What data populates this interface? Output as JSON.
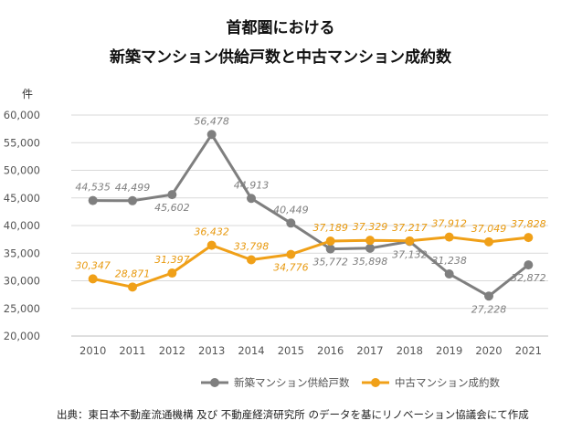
{
  "chart_data": {
    "type": "line",
    "title_line1": "首都圏における",
    "title_line2": "新築マンション供給戸数と中古マンション成約数",
    "ylabel": "件",
    "xlabel": "",
    "ylim": [
      20000,
      60000
    ],
    "yticks": [
      20000,
      25000,
      30000,
      35000,
      40000,
      45000,
      50000,
      55000,
      60000
    ],
    "ytick_labels": [
      "20,000",
      "25,000",
      "30,000",
      "35,000",
      "40,000",
      "45,000",
      "50,000",
      "55,000",
      "60,000"
    ],
    "categories": [
      "2010",
      "2011",
      "2012",
      "2013",
      "2014",
      "2015",
      "2016",
      "2017",
      "2018",
      "2019",
      "2020",
      "2021"
    ],
    "grid": "horizontal",
    "legend_position": "bottom-right",
    "series": [
      {
        "name": "新築マンション供給戸数",
        "color": "#7f7f7f",
        "label_color": "#7f7f7f",
        "values": [
          44535,
          44499,
          45602,
          56478,
          44913,
          40449,
          35772,
          35898,
          37132,
          31238,
          27228,
          32872
        ],
        "labels": [
          "44,535",
          "44,499",
          "45,602",
          "56,478",
          "44,913",
          "40,449",
          "35,772",
          "35,898",
          "37,132",
          "31,238",
          "27,228",
          "32,872"
        ],
        "label_side": [
          "above",
          "above",
          "below",
          "above",
          "above",
          "above",
          "below",
          "below",
          "below",
          "above",
          "below",
          "below"
        ]
      },
      {
        "name": "中古マンション成約数",
        "color": "#f0a018",
        "label_color": "#e89a10",
        "values": [
          30347,
          28871,
          31397,
          36432,
          33798,
          34776,
          37189,
          37329,
          37217,
          37912,
          37049,
          37828
        ],
        "labels": [
          "30,347",
          "28,871",
          "31,397",
          "36,432",
          "33,798",
          "34,776",
          "37,189",
          "37,329",
          "37,217",
          "37,912",
          "37,049",
          "37,828"
        ],
        "label_side": [
          "above",
          "above",
          "above",
          "above",
          "above",
          "below",
          "above",
          "above",
          "above",
          "above",
          "above",
          "above"
        ]
      }
    ],
    "source": "出典：東日本不動産流通機構 及び 不動産経済研究所 のデータを基にリノベーション協議会にて作成"
  }
}
